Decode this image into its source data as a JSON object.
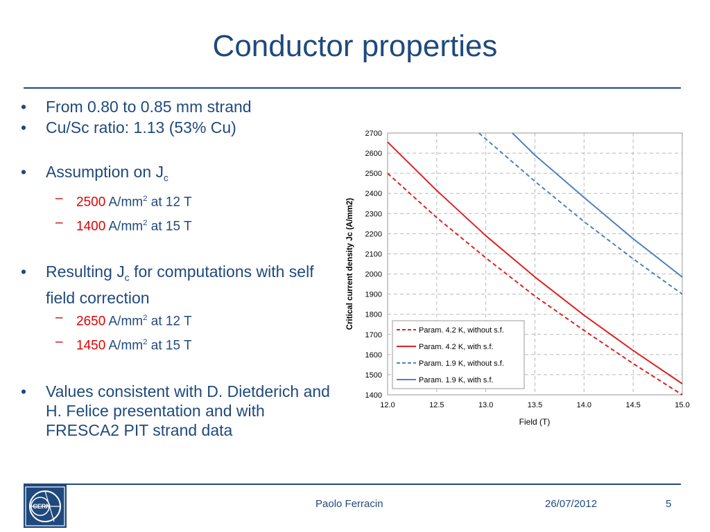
{
  "slide": {
    "title": "Conductor properties",
    "bullets": {
      "b1": "From 0.80 to 0.85 mm strand",
      "b2": "Cu/Sc ratio: 1.13 (53% Cu)",
      "b3_text": "Assumption on J",
      "b3_sub": "c",
      "b3_items": [
        {
          "value": "2500",
          "unit": " A/mm",
          "sup": "2",
          "rest": " at 12 T"
        },
        {
          "value": "1400",
          "unit": " A/mm",
          "sup": "2",
          "rest": " at 15 T"
        }
      ],
      "b4_text1": "Resulting J",
      "b4_sub": "c",
      "b4_text2": " for computations with self field correction",
      "b4_items": [
        {
          "value": "2650",
          "unit": " A/mm",
          "sup": "2",
          "rest": " at 12 T"
        },
        {
          "value": "1450",
          "unit": " A/mm",
          "sup": "2",
          "rest": " at 15 T"
        }
      ],
      "b5": "Values consistent with D. Dietderich and H. Felice presentation and with FRESCA2 PIT strand data"
    }
  },
  "footer": {
    "name": "Paolo Ferracin",
    "date": "26/07/2012",
    "page": "5",
    "logo_text": "CERN"
  },
  "colors": {
    "title": "#1f497d",
    "red": "#e02020",
    "blue": "#4f81bd"
  },
  "chart_data": {
    "type": "line",
    "title": "",
    "xlabel": "Field (T)",
    "ylabel": "Critical current density Jc (A/mm2)",
    "xlim": [
      12.0,
      15.0
    ],
    "ylim": [
      1400,
      2700
    ],
    "x_ticks": [
      "12.0",
      "12.5",
      "13.0",
      "13.5",
      "14.0",
      "14.5",
      "15.0"
    ],
    "y_ticks": [
      "1400",
      "1500",
      "1600",
      "1700",
      "1800",
      "1900",
      "2000",
      "2100",
      "2200",
      "2300",
      "2400",
      "2500",
      "2600",
      "2700"
    ],
    "grid": true,
    "legend_position": "bottom-left",
    "series": [
      {
        "name": "Param. 4.2 K, without s.f.",
        "color": "#e02020",
        "dash": true,
        "x": [
          12.0,
          12.5,
          13.0,
          13.5,
          14.0,
          14.5,
          15.0
        ],
        "y": [
          2500,
          2280,
          2080,
          1890,
          1720,
          1555,
          1400
        ]
      },
      {
        "name": "Param. 4.2 K, with s.f.",
        "color": "#e02020",
        "dash": false,
        "x": [
          12.0,
          12.5,
          13.0,
          13.5,
          14.0,
          14.5,
          15.0
        ],
        "y": [
          2655,
          2415,
          2190,
          1985,
          1795,
          1620,
          1455
        ]
      },
      {
        "name": "Param. 1.9 K, without s.f.",
        "color": "#4f81bd",
        "dash": true,
        "x": [
          12.93,
          13.5,
          14.0,
          14.5,
          15.0
        ],
        "y": [
          2700,
          2460,
          2260,
          2075,
          1900
        ]
      },
      {
        "name": "Param. 1.9 K, with s.f.",
        "color": "#4f81bd",
        "dash": false,
        "x": [
          13.27,
          13.5,
          14.0,
          14.5,
          15.0
        ],
        "y": [
          2700,
          2590,
          2380,
          2175,
          1985
        ]
      }
    ]
  }
}
